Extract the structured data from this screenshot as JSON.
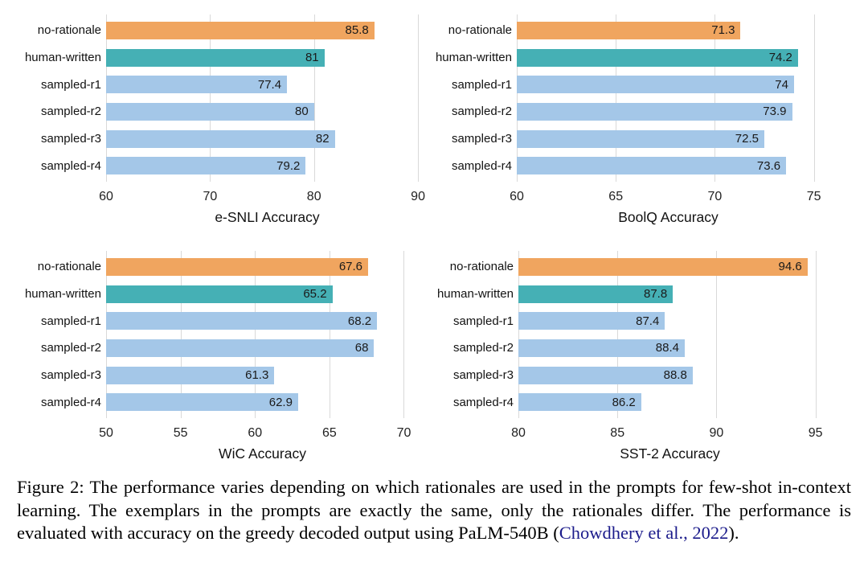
{
  "figure": {
    "caption_prefix": "Figure 2: The performance varies depending on which rationales are used in the prompts for few-shot in-context learning. The exemplars in the prompts are exactly the same, only the rationales differ. The performance is evaluated with accuracy on the greedy decoded output using PaLM-540B (",
    "caption_link": "Chowdhery et al., 2022",
    "caption_suffix": ")."
  },
  "categories": [
    "no-rationale",
    "human-written",
    "sampled-r1",
    "sampled-r2",
    "sampled-r3",
    "sampled-r4"
  ],
  "row_roles": [
    "no_rationale",
    "human_written",
    "sampled",
    "sampled",
    "sampled",
    "sampled"
  ],
  "palette": {
    "no_rationale": "#F0A55F",
    "human_written": "#45B0B5",
    "sampled": "#A4C7E8",
    "gridline": "#D9D9D9",
    "value_text": "#1A1A1A",
    "citation_link": "#1B1B8B"
  },
  "chart_data": [
    {
      "type": "bar",
      "xlabel": "e-SNLI Accuracy",
      "categories": [
        "no-rationale",
        "human-written",
        "sampled-r1",
        "sampled-r2",
        "sampled-r3",
        "sampled-r4"
      ],
      "values": [
        85.8,
        81,
        77.4,
        80,
        82,
        79.2
      ],
      "ticks": [
        60,
        70,
        80,
        90
      ],
      "xlim": [
        60,
        91
      ],
      "grid": true,
      "orientation": "horizontal"
    },
    {
      "type": "bar",
      "xlabel": "BoolQ Accuracy",
      "categories": [
        "no-rationale",
        "human-written",
        "sampled-r1",
        "sampled-r2",
        "sampled-r3",
        "sampled-r4"
      ],
      "values": [
        71.3,
        74.2,
        74,
        73.9,
        72.5,
        73.6
      ],
      "ticks": [
        60,
        65,
        70,
        75
      ],
      "xlim": [
        60,
        75.3
      ],
      "grid": true,
      "orientation": "horizontal"
    },
    {
      "type": "bar",
      "xlabel": "WiC Accuracy",
      "categories": [
        "no-rationale",
        "human-written",
        "sampled-r1",
        "sampled-r2",
        "sampled-r3",
        "sampled-r4"
      ],
      "values": [
        67.6,
        65.2,
        68.2,
        68,
        61.3,
        62.9
      ],
      "ticks": [
        50,
        55,
        60,
        65,
        70
      ],
      "xlim": [
        50,
        71
      ],
      "grid": true,
      "orientation": "horizontal"
    },
    {
      "type": "bar",
      "xlabel": "SST-2 Accuracy",
      "categories": [
        "no-rationale",
        "human-written",
        "sampled-r1",
        "sampled-r2",
        "sampled-r3",
        "sampled-r4"
      ],
      "values": [
        94.6,
        87.8,
        87.4,
        88.4,
        88.8,
        86.2
      ],
      "ticks": [
        80,
        85,
        90,
        95
      ],
      "xlim": [
        80,
        95.3
      ],
      "grid": true,
      "orientation": "horizontal"
    }
  ]
}
